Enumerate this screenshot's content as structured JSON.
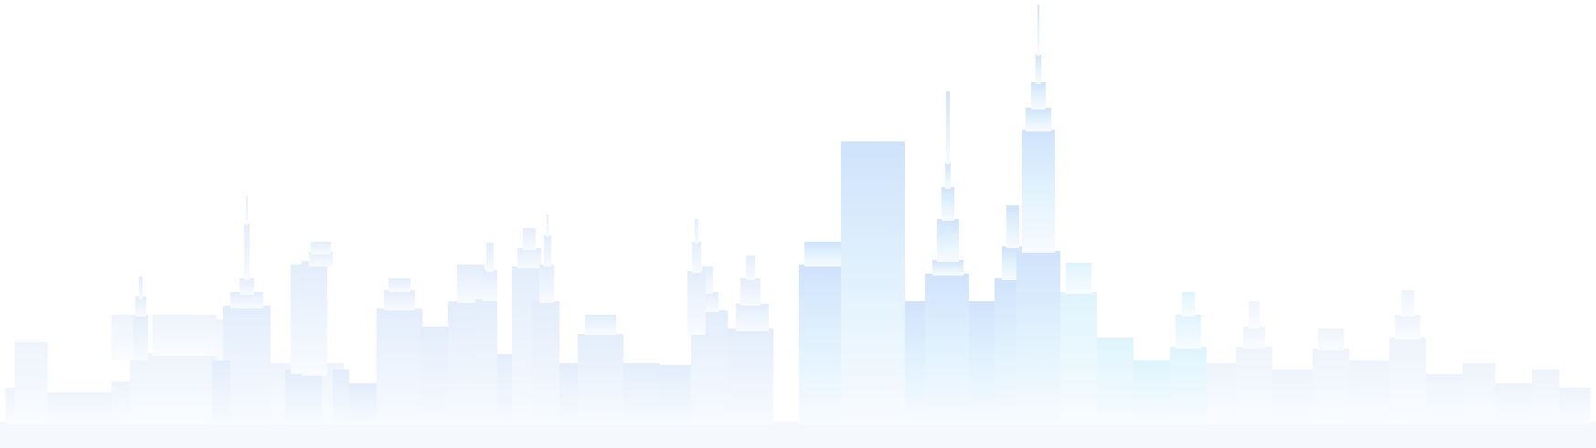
{
  "scene": {
    "subject": "city-skyline-silhouette",
    "palette": {
      "background": "#ffffff",
      "tower_top": "#cfe3fb",
      "tower_mid": "#dff2fd",
      "tower_bottom": "#f7fbff",
      "ground": "#f3f7fc"
    }
  }
}
